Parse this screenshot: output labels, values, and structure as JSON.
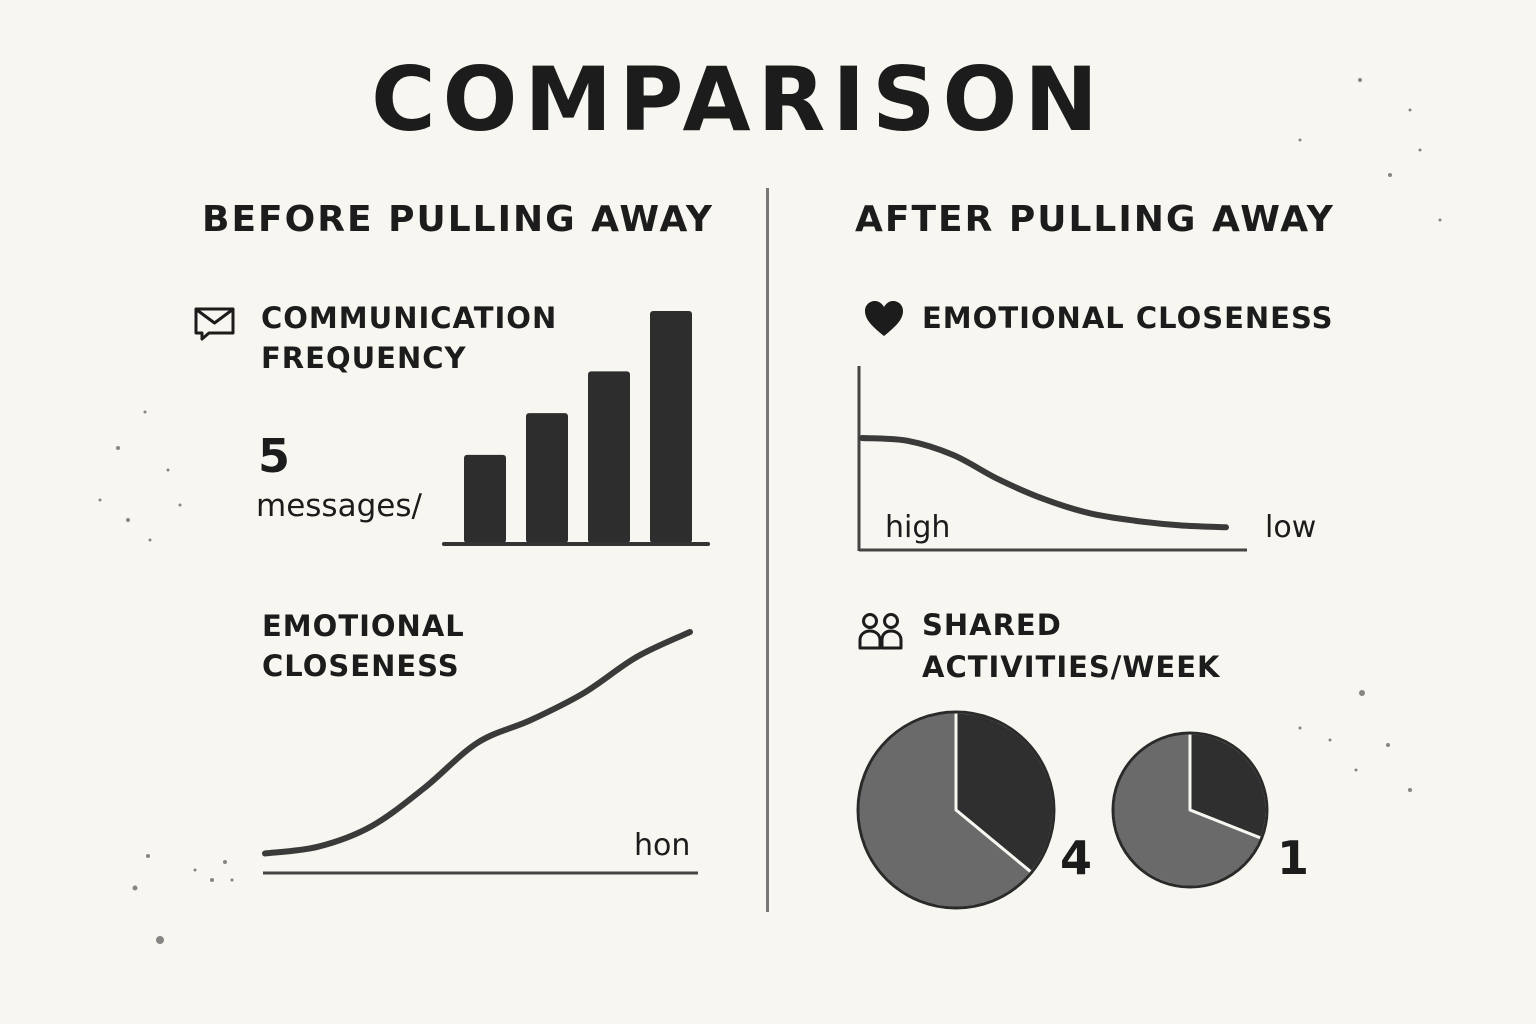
{
  "title": "COMPARISON",
  "colors": {
    "background": "#f8f6f1",
    "ink": "#1c1c1c",
    "bar_fill": "#2d2d2d",
    "pie_dark": "#2f2f2f",
    "pie_light": "#6a6a6a"
  },
  "before": {
    "heading": "BEFORE PULLING AWAY",
    "communication": {
      "icon": "message-icon",
      "label_line1": "COMMUNICATION",
      "label_line2": "FREQUENCY",
      "value": "5",
      "unit": "messages/"
    },
    "closeness": {
      "label_line1": "EMOTIONAL",
      "label_line2": "CLOSENESS",
      "axis_text": "hon"
    }
  },
  "after": {
    "heading": "AFTER PULLING AWAY",
    "closeness": {
      "icon": "heart-icon",
      "label": "EMOTIONAL CLOSENESS",
      "start_label": "high",
      "end_label": "low"
    },
    "activities": {
      "icon": "people-icon",
      "label_line1": "SHARED",
      "label_line2": "ACTIVITIES/WEEK"
    }
  },
  "chart_data": [
    {
      "type": "bar",
      "title": "COMMUNICATION FREQUENCY",
      "values": [
        38,
        56,
        74,
        100
      ]
    },
    {
      "type": "line",
      "title": "EMOTIONAL CLOSENESS",
      "x": [
        0,
        1,
        2,
        3,
        4,
        5,
        6,
        7,
        8
      ],
      "values": [
        2,
        5,
        14,
        31,
        51,
        61,
        73,
        89,
        100
      ]
    },
    {
      "type": "line",
      "title": "EMOTIONAL CLOSENESS",
      "x": [
        0,
        1,
        2,
        3,
        4,
        5,
        6,
        7,
        8
      ],
      "values": [
        100,
        97,
        82,
        56,
        35,
        20,
        12,
        7,
        5
      ]
    },
    {
      "type": "pie",
      "title": "SHARED ACTIVITIES/WEEK",
      "pies": [
        {
          "label": "4",
          "slices": [
            36,
            64
          ]
        },
        {
          "label": "1",
          "slices": [
            31,
            69
          ]
        }
      ]
    }
  ]
}
